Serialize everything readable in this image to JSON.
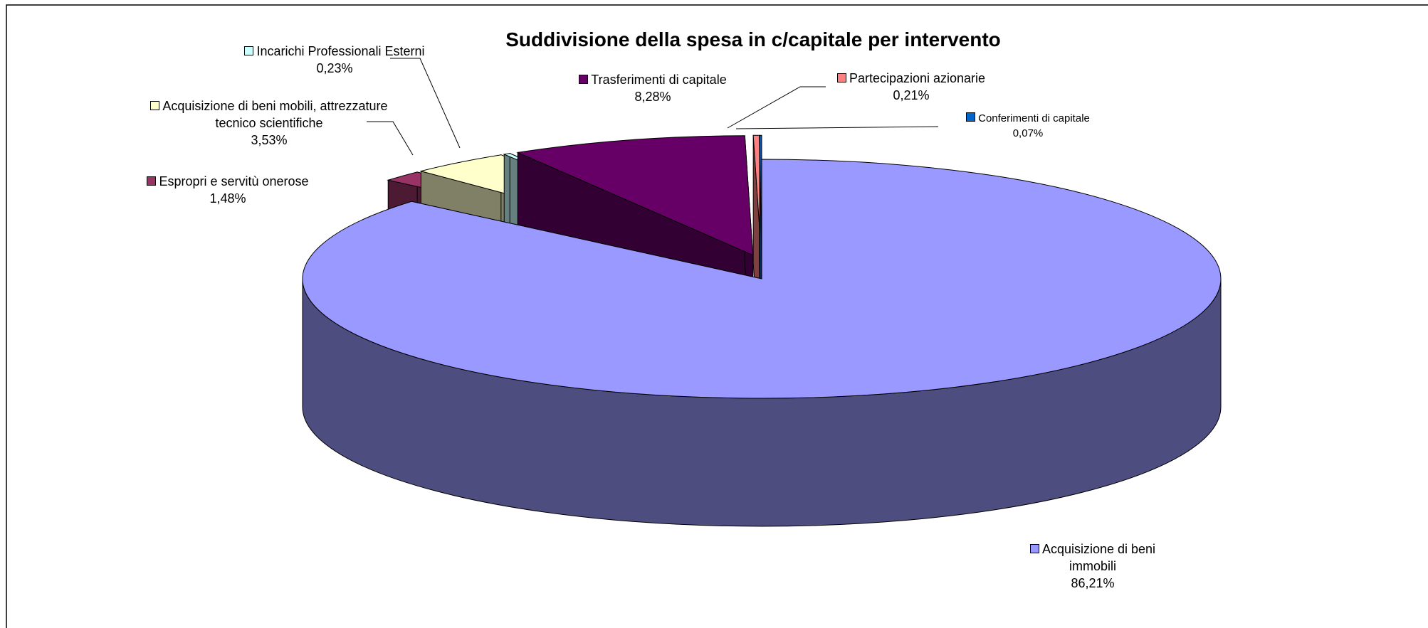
{
  "chart_data": {
    "type": "pie3d",
    "title": "Suddivisione della spesa in c/capitale per intervento",
    "categories": [
      "Acquisizione di beni immobili",
      "Espropri e servitù onerose",
      "Acquisizione di beni mobili, attrezzature tecnico scientifiche",
      "Incarichi Professionali Esterni",
      "Trasferimenti di capitale",
      "Partecipazioni azionarie",
      "Conferimenti di capitale"
    ],
    "values": [
      86.21,
      1.48,
      3.53,
      0.23,
      8.28,
      0.21,
      0.07
    ],
    "value_labels": [
      "86,21%",
      "1,48%",
      "3,53%",
      "0,23%",
      "8,28%",
      "0,21%",
      "0,07%"
    ],
    "colors": [
      "#9999ff",
      "#993366",
      "#ffffcc",
      "#ccffff",
      "#660066",
      "#ff8080",
      "#0066cc"
    ]
  }
}
